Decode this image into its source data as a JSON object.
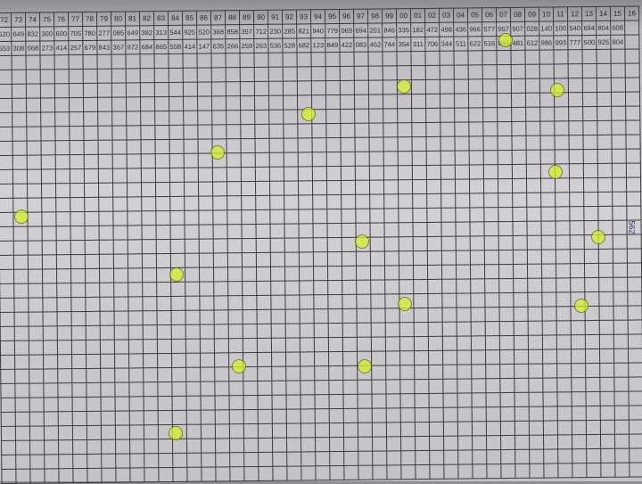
{
  "sheet": {
    "column_headers": [
      "72",
      "73",
      "74",
      "75",
      "76",
      "77",
      "78",
      "79",
      "80",
      "81",
      "82",
      "83",
      "84",
      "85",
      "86",
      "87",
      "88",
      "89",
      "90",
      "91",
      "92",
      "93",
      "94",
      "95",
      "96",
      "97",
      "98",
      "99",
      "00",
      "01",
      "02",
      "03",
      "04",
      "05",
      "06",
      "07",
      "08",
      "09",
      "10",
      "11",
      "12",
      "13",
      "14",
      "15",
      "16"
    ],
    "rows": [
      [
        "520",
        "649",
        "832",
        "300",
        "600",
        "705",
        "780",
        "277",
        "085",
        "649",
        "392",
        "313",
        "544",
        "925",
        "520",
        "368",
        "858",
        "357",
        "712",
        "230",
        "285",
        "821",
        "940",
        "779",
        "069",
        "694",
        "201",
        "846",
        "335",
        "182",
        "472",
        "498",
        "436",
        "966",
        "577",
        "957",
        "907",
        "028",
        "140",
        "100",
        "540",
        "694",
        "804",
        "608",
        ""
      ],
      [
        "553",
        "308",
        "068",
        "273",
        "414",
        "257",
        "679",
        "843",
        "367",
        "972",
        "684",
        "865",
        "558",
        "414",
        "147",
        "635",
        "266",
        "259",
        "263",
        "536",
        "528",
        "682",
        "123",
        "849",
        "422",
        "083",
        "462",
        "744",
        "354",
        "311",
        "706",
        "344",
        "511",
        "622",
        "516",
        "866",
        "481",
        "612",
        "986",
        "993",
        "777",
        "500",
        "925",
        "804",
        ""
      ]
    ],
    "highlight_color": "#d7f028",
    "margin_note": "562"
  }
}
